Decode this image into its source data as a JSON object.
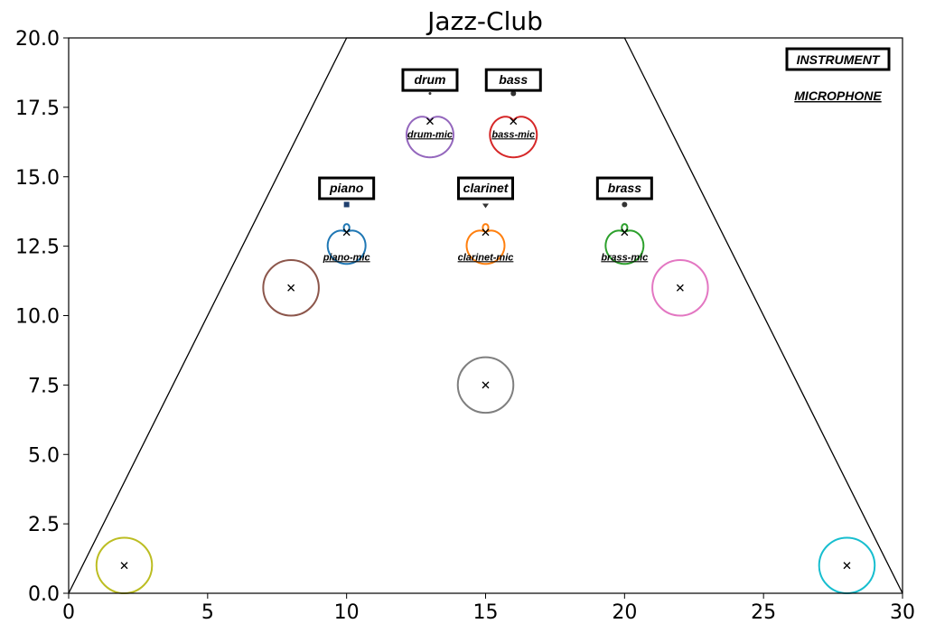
{
  "chart_data": {
    "type": "scatter",
    "title": "Jazz-Club",
    "xlim": [
      0,
      30
    ],
    "ylim": [
      0,
      20
    ],
    "xticks": [
      "0",
      "5",
      "10",
      "15",
      "20",
      "25",
      "30"
    ],
    "yticks": [
      "0.0",
      "2.5",
      "5.0",
      "7.5",
      "10.0",
      "12.5",
      "15.0",
      "17.5",
      "20.0"
    ],
    "grid": false,
    "stage_outline": [
      [
        0,
        0
      ],
      [
        10,
        20
      ],
      [
        20,
        20
      ],
      [
        30,
        0
      ]
    ],
    "legend": {
      "instrument": "INSTRUMENT",
      "microphone": "MICROPHONE",
      "placement": "top-right"
    },
    "instruments": [
      {
        "name": "drum",
        "label_pos": [
          13,
          18.5
        ],
        "x": 13,
        "y": 18,
        "color": "#9467bd",
        "marker": "dot"
      },
      {
        "name": "bass",
        "label_pos": [
          16,
          18.5
        ],
        "x": 16,
        "y": 18,
        "color": "#d62728",
        "marker": "dot"
      },
      {
        "name": "piano",
        "label_pos": [
          10,
          14.6
        ],
        "x": 10,
        "y": 14,
        "color": "#1f77b4",
        "marker": "square"
      },
      {
        "name": "clarinet",
        "label_pos": [
          15,
          14.6
        ],
        "x": 15,
        "y": 14,
        "color": "#ff7f0e",
        "marker": "triangle"
      },
      {
        "name": "brass",
        "label_pos": [
          20,
          14.6
        ],
        "x": 20,
        "y": 14,
        "color": "#2ca02c",
        "marker": "dot"
      }
    ],
    "microphones": [
      {
        "name": "drum-mic",
        "x": 13,
        "y": 17,
        "color": "#9467bd",
        "pattern": "cardioid"
      },
      {
        "name": "bass-mic",
        "x": 16,
        "y": 17,
        "color": "#d62728",
        "pattern": "cardioid"
      },
      {
        "name": "piano-mic",
        "x": 10,
        "y": 13,
        "color": "#1f77b4",
        "pattern": "supercardioid"
      },
      {
        "name": "clarinet-mic",
        "x": 15,
        "y": 13,
        "color": "#ff7f0e",
        "pattern": "supercardioid"
      },
      {
        "name": "brass-mic",
        "x": 20,
        "y": 13,
        "color": "#2ca02c",
        "pattern": "supercardioid"
      }
    ],
    "ambient_mics": [
      {
        "x": 8,
        "y": 11,
        "r": 1.0,
        "color": "#8c564b"
      },
      {
        "x": 22,
        "y": 11,
        "r": 1.0,
        "color": "#e377c2"
      },
      {
        "x": 15,
        "y": 7.5,
        "r": 1.0,
        "color": "#7f7f7f"
      },
      {
        "x": 2,
        "y": 1,
        "r": 1.0,
        "color": "#bcbd22"
      },
      {
        "x": 28,
        "y": 1,
        "r": 1.0,
        "color": "#17becf"
      }
    ]
  }
}
